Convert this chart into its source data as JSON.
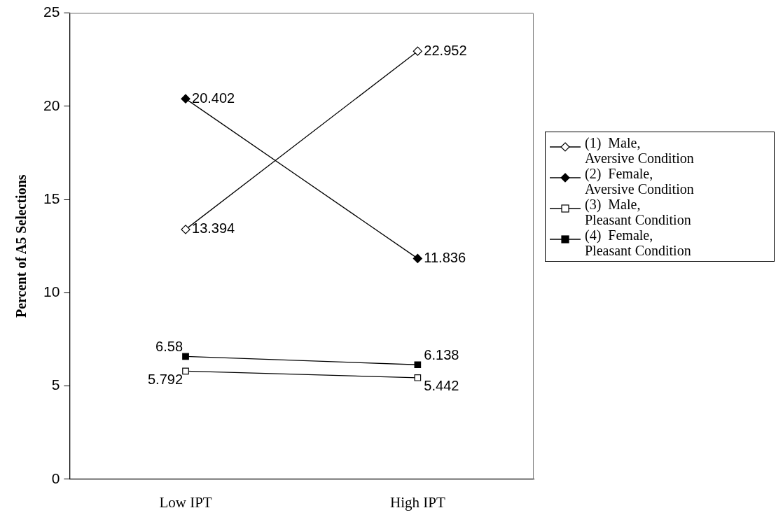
{
  "chart_data": {
    "type": "line",
    "ylabel": "Percent of A5 Selections",
    "categories": [
      "Low IPT",
      "High IPT"
    ],
    "series": [
      {
        "name": "(1)  Male, Aversive Condition",
        "color": "#000000",
        "marker": "diamond",
        "colors": [
          "#ffffff",
          "#ffffff"
        ],
        "values": [
          13.394,
          22.952
        ]
      },
      {
        "name": "(2)  Female, Aversive Condition",
        "color": "#000000",
        "marker": "diamond",
        "colors": [
          "#000000",
          "#000000"
        ],
        "values": [
          20.402,
          11.836
        ]
      },
      {
        "name": "(3)  Male, Pleasant Condition",
        "color": "#000000",
        "marker": "square",
        "colors": [
          "#ffffff",
          "#ffffff"
        ],
        "values": [
          5.792,
          5.442
        ]
      },
      {
        "name": "(4)  Female, Pleasant Condition",
        "color": "#000000",
        "marker": "square",
        "colors": [
          "#000000",
          "#000000"
        ],
        "values": [
          6.58,
          6.138
        ]
      }
    ],
    "ylim": [
      0,
      25
    ],
    "yticks": [
      0,
      5,
      10,
      15,
      20,
      25
    ],
    "grid": false,
    "legend": "right",
    "data_labels": true,
    "line_style": "solid"
  }
}
